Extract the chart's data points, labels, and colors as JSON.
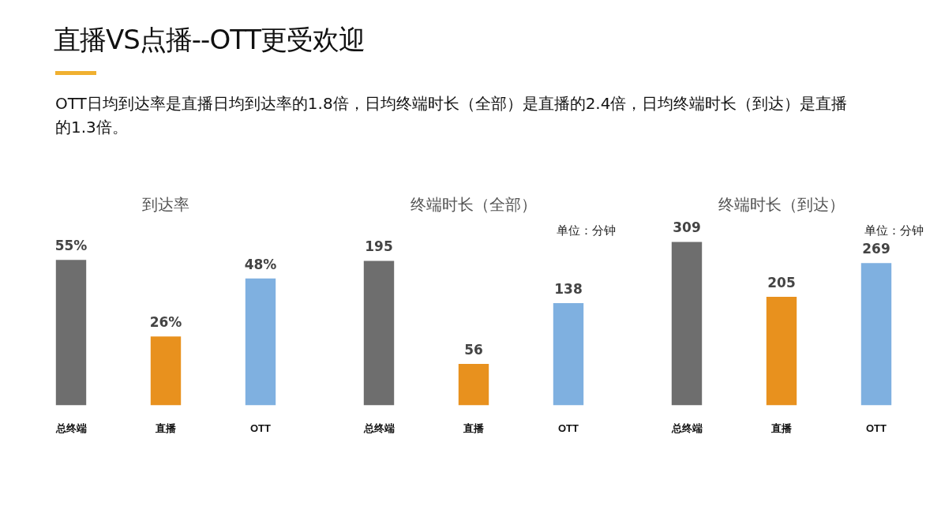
{
  "chart_data": [
    {
      "type": "other",
      "title": "直播VS点播--OTT更受欢迎",
      "subtitle": "OTT日均到达率是直播日均到达率的1.8倍，日均终端时长（全部）是直播的2.4倍，日均终端时长（到达）是直播的1.3倍。"
    },
    {
      "type": "bar",
      "title": "到达率",
      "categories": [
        "总终端",
        "直播",
        "OTT"
      ],
      "values": [
        55,
        26,
        48
      ],
      "value_labels": [
        "55%",
        "26%",
        "48%"
      ],
      "colors": [
        "#6e6e6e",
        "#e8911e",
        "#7fb0e0"
      ]
    },
    {
      "type": "bar",
      "title": "终端时长（全部）",
      "categories": [
        "总终端",
        "直播",
        "OTT"
      ],
      "values": [
        195,
        56,
        138
      ],
      "data_labels": true,
      "colors": [
        "#6e6e6e",
        "#e8911e",
        "#7fb0e0"
      ],
      "annotations": [
        "单位：分钟"
      ]
    },
    {
      "type": "bar",
      "title": "终端时长（到达）",
      "categories": [
        "总终端",
        "直播",
        "OTT"
      ],
      "values": [
        309,
        205,
        269
      ],
      "data_labels": true,
      "colors": [
        "#6e6e6e",
        "#e8911e",
        "#7fb0e0"
      ],
      "annotations": [
        "单位：分钟"
      ]
    }
  ]
}
